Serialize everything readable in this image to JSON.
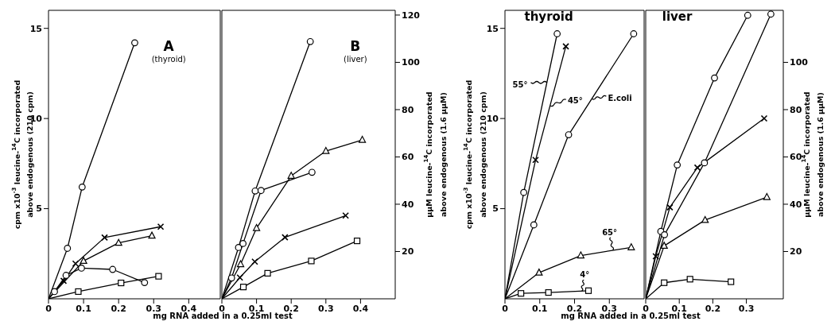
{
  "chart_data": [
    {
      "type": "line",
      "title": "A",
      "subtitle": "(thyroid)",
      "xlabel": "mg RNA added in a 0.25ml test",
      "ylabel": "cpm x10$^{-3}$ leucine-$^{14}$C incorporated\nabove endogenous (210 cpm)",
      "xlim": [
        0,
        0.49
      ],
      "xticks": [
        0,
        0.1,
        0.2,
        0.3,
        0.4
      ],
      "ylim": [
        0,
        16
      ],
      "yticks": [
        5,
        10,
        15
      ],
      "series": [
        {
          "color": "#000000",
          "marker": "circle",
          "x": [
            0,
            0.054,
            0.096,
            0.246
          ],
          "values": [
            0,
            2.8,
            6.2,
            14.2
          ]
        },
        {
          "color": "#000000",
          "marker": "cross",
          "x": [
            0,
            0.043,
            0.077,
            0.16,
            0.32
          ],
          "values": [
            0,
            1.0,
            1.95,
            3.4,
            4.0
          ]
        },
        {
          "color": "#000000",
          "marker": "triangle",
          "x": [
            0,
            0.1,
            0.2,
            0.295
          ],
          "values": [
            0,
            2.1,
            3.1,
            3.5
          ]
        },
        {
          "color": "#000000",
          "marker": "circle",
          "x": [
            0,
            0.017,
            0.05,
            0.094,
            0.183,
            0.274
          ],
          "values": [
            0,
            0.4,
            1.3,
            1.7,
            1.63,
            0.9
          ]
        },
        {
          "color": "#000000",
          "marker": "square",
          "x": [
            0,
            0.085,
            0.207,
            0.314
          ],
          "values": [
            0,
            0.4,
            0.88,
            1.25
          ]
        }
      ]
    },
    {
      "type": "line",
      "title": "B",
      "subtitle": "(liver)",
      "y2label": "μμM leucine-$^{14}$C incorporated\nabove endogenous (1.6 μμM)",
      "xlim": [
        0,
        0.5
      ],
      "xticks": [
        0,
        0.1,
        0.2,
        0.3,
        0.4
      ],
      "y2lim": [
        0,
        122
      ],
      "y2ticks": [
        20,
        40,
        60,
        80,
        100,
        120
      ],
      "series": [
        {
          "color": "#000000",
          "marker": "circle",
          "axis": "y2",
          "x": [
            0,
            0.048,
            0.096,
            0.255
          ],
          "values": [
            0,
            21.7,
            45.6,
            108.8
          ]
        },
        {
          "color": "#000000",
          "marker": "circle",
          "axis": "y2",
          "x": [
            0,
            0.028,
            0.061,
            0.113,
            0.26
          ],
          "values": [
            0,
            8.8,
            23.4,
            45.8,
            53.5
          ]
        },
        {
          "color": "#000000",
          "marker": "triangle",
          "axis": "y2",
          "x": [
            0,
            0.054,
            0.1,
            0.2,
            0.3,
            0.405
          ],
          "values": [
            0,
            14.6,
            29.9,
            52,
            62.5,
            67.2
          ]
        },
        {
          "color": "#000000",
          "marker": "cross",
          "axis": "y2",
          "x": [
            0,
            0.052,
            0.095,
            0.182,
            0.357
          ],
          "values": [
            0,
            9,
            15.7,
            26,
            35.2
          ]
        },
        {
          "color": "#000000",
          "marker": "square",
          "axis": "y2",
          "x": [
            0,
            0.062,
            0.132,
            0.258,
            0.39
          ],
          "values": [
            0,
            5,
            10.8,
            16,
            24.5
          ]
        }
      ]
    },
    {
      "type": "line",
      "title": "thyroid",
      "xlabel": "mg RNA added in a 0.25ml test",
      "ylabel": "cpm x10$^{-3}$ leucine-$^{14}$C incorporated\nabove endogenous (210 cpm)",
      "xlim": [
        0,
        0.4
      ],
      "xticks": [
        0,
        0.1,
        0.2,
        0.3
      ],
      "ylim": [
        0,
        16
      ],
      "yticks": [
        5,
        10,
        15
      ],
      "annotations": [
        {
          "text": "55°",
          "x": 0.12,
          "y": 12
        },
        {
          "text": "45°",
          "x": 0.13,
          "y": 10.7
        },
        {
          "text": "E.coli",
          "x": 0.25,
          "y": 11.1
        },
        {
          "text": "65°",
          "x": 0.31,
          "y": 2.7
        },
        {
          "text": "4°",
          "x": 0.22,
          "y": 0.43
        }
      ],
      "series": [
        {
          "color": "#000000",
          "marker": "circle",
          "x": [
            0,
            0.054,
            0.15
          ],
          "values": [
            0,
            5.9,
            14.7
          ]
        },
        {
          "color": "#000000",
          "marker": "cross",
          "x": [
            0,
            0.088,
            0.175
          ],
          "values": [
            0,
            7.7,
            14.0
          ]
        },
        {
          "color": "#000000",
          "marker": "circle",
          "x": [
            0,
            0.083,
            0.183,
            0.37
          ],
          "values": [
            0,
            4.1,
            9.1,
            14.7
          ]
        },
        {
          "color": "#000000",
          "marker": "triangle",
          "x": [
            0,
            0.098,
            0.218,
            0.363
          ],
          "values": [
            0,
            1.45,
            2.4,
            2.85
          ]
        },
        {
          "color": "#000000",
          "marker": "square",
          "x": [
            0,
            0.046,
            0.125,
            0.24
          ],
          "values": [
            0,
            0.3,
            0.35,
            0.45
          ]
        }
      ]
    },
    {
      "type": "line",
      "title": "liver",
      "y2label": "μμM leucine-$^{14}$C incorporated\nabove endogenous (1.6 μμM)",
      "xlim": [
        0,
        0.41
      ],
      "xticks": [
        0,
        0.1,
        0.2,
        0.3
      ],
      "y2lim": [
        0,
        122
      ],
      "y2ticks": [
        20,
        40,
        60,
        80,
        100
      ],
      "series": [
        {
          "color": "#000000",
          "marker": "circle",
          "axis": "y2",
          "x": [
            0,
            0.045,
            0.094,
            0.205,
            0.304
          ],
          "values": [
            0,
            28.5,
            56.6,
            93.4,
            119.9
          ]
        },
        {
          "color": "#000000",
          "marker": "circle",
          "axis": "y2",
          "x": [
            0,
            0.056,
            0.175,
            0.373
          ],
          "values": [
            0,
            27.1,
            57.5,
            120.4
          ]
        },
        {
          "color": "#000000",
          "marker": "cross",
          "axis": "y2",
          "x": [
            0,
            0.03,
            0.072,
            0.154,
            0.353
          ],
          "values": [
            0,
            18,
            38.7,
            55.5,
            76.3
          ]
        },
        {
          "color": "#000000",
          "marker": "triangle",
          "axis": "y2",
          "x": [
            0,
            0.055,
            0.177,
            0.361
          ],
          "values": [
            0,
            22.4,
            33.3,
            43
          ]
        },
        {
          "color": "#000000",
          "marker": "square",
          "axis": "y2",
          "x": [
            0,
            0.055,
            0.132,
            0.254
          ],
          "values": [
            0,
            6.8,
            8.3,
            7.2
          ]
        }
      ]
    }
  ]
}
